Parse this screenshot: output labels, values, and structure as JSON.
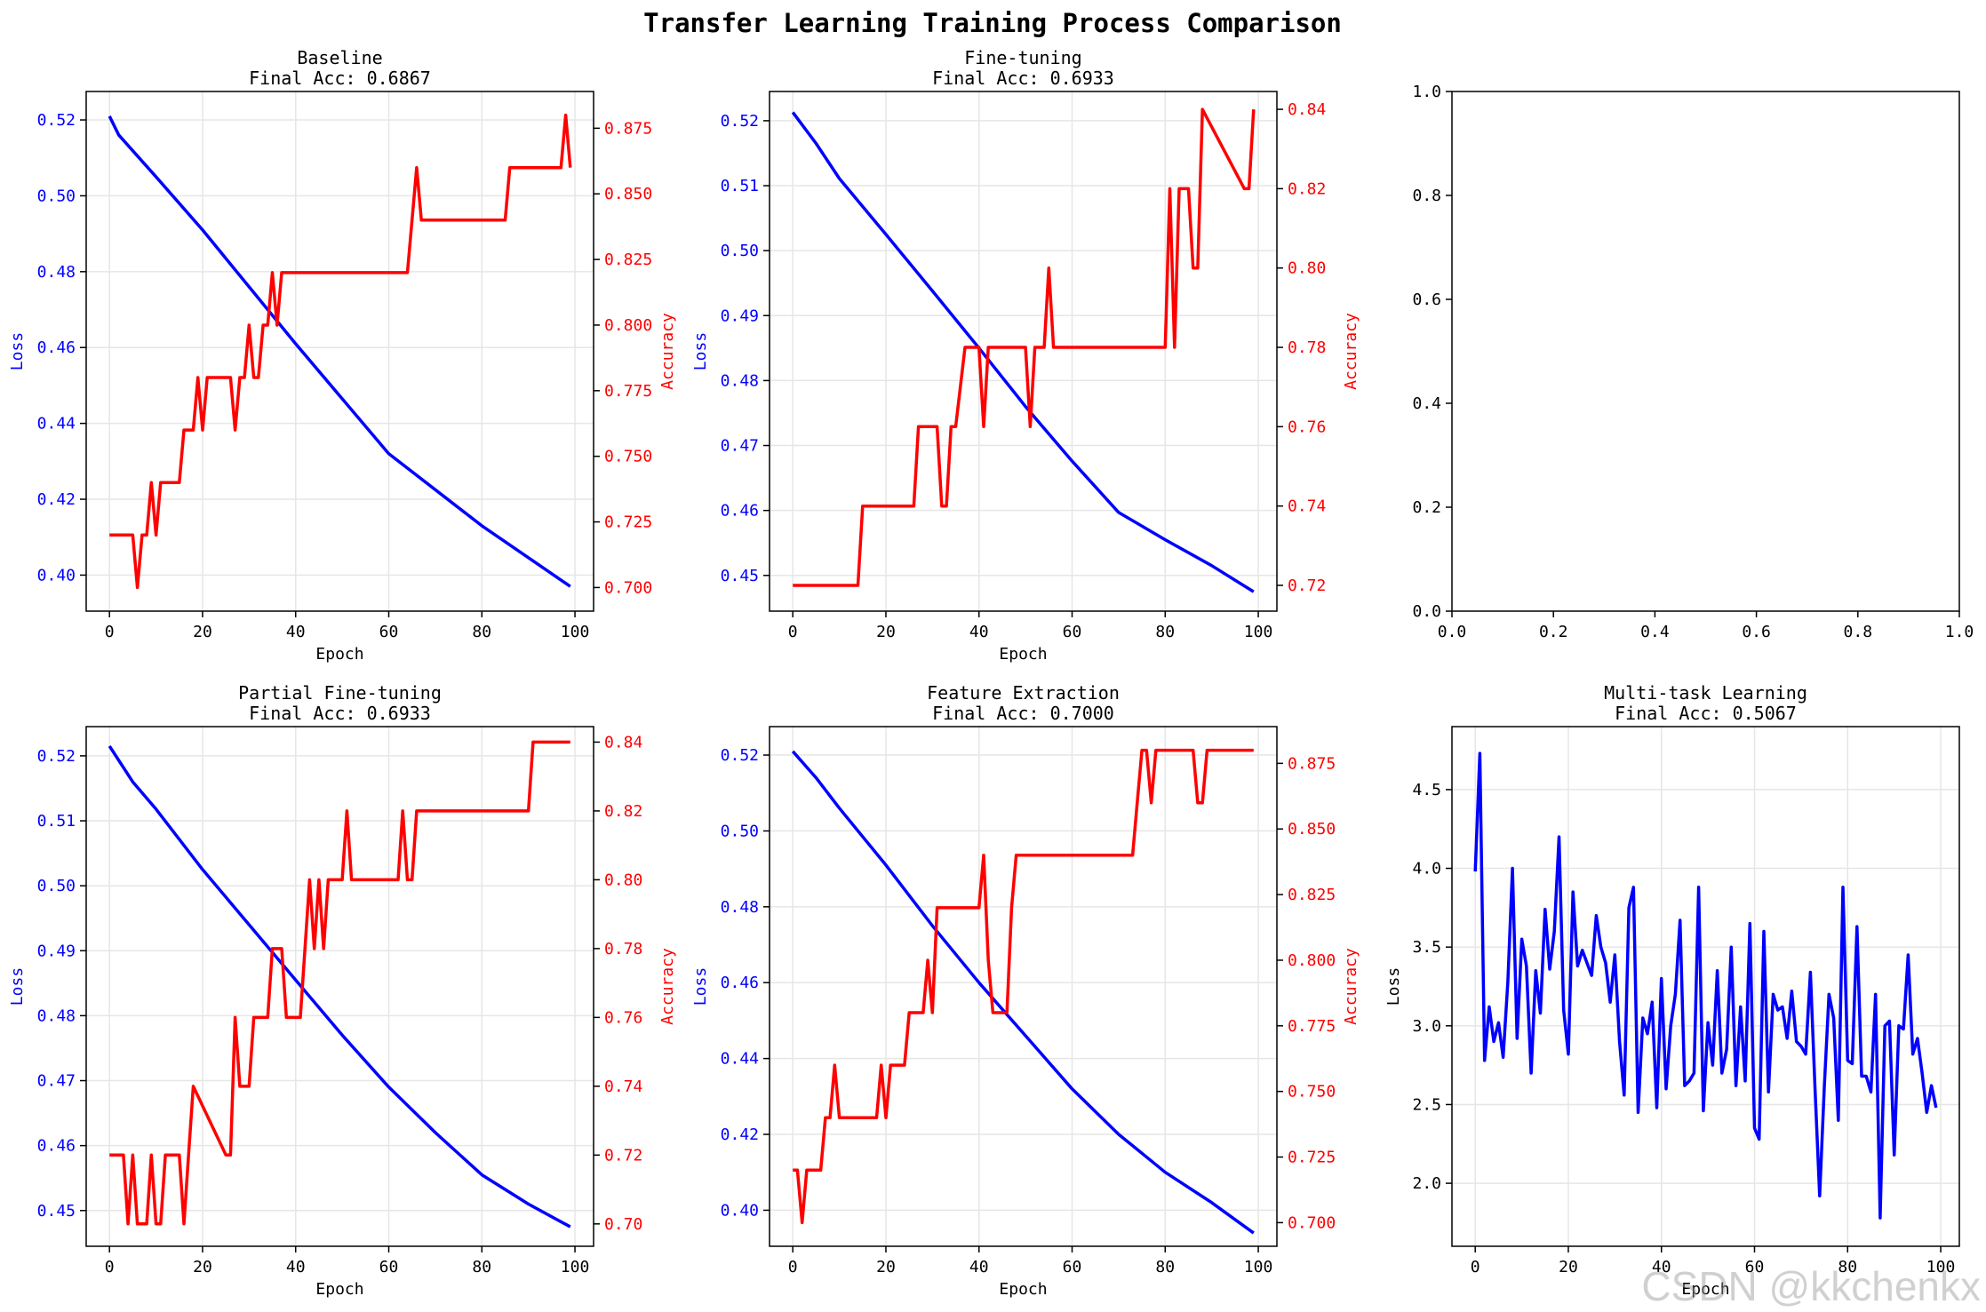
{
  "figure": {
    "title": "Transfer Learning Training Process Comparison",
    "watermark": "CSDN @kkchenkx"
  },
  "colors": {
    "loss": "#0000ff",
    "accuracy": "#ff0000",
    "grid": "#e6e6e6",
    "axis": "#000000"
  },
  "chart_data": [
    {
      "type": "line",
      "title": "Baseline",
      "subtitle": "Final Acc: 0.6867",
      "xlabel": "Epoch",
      "ylabel": "Loss",
      "ylabel_right": "Accuracy",
      "xlim": [
        -5,
        104
      ],
      "xticks": [
        0,
        20,
        40,
        60,
        80,
        100
      ],
      "ylim": [
        0.3905,
        0.5275
      ],
      "yticks": [
        0.4,
        0.42,
        0.44,
        0.46,
        0.48,
        0.5,
        0.52
      ],
      "ytick_decimals": 2,
      "ylim_right": [
        0.691,
        0.889
      ],
      "yticks_right": [
        0.7,
        0.725,
        0.75,
        0.775,
        0.8,
        0.825,
        0.85,
        0.875
      ],
      "ytick_right_decimals": 3,
      "grid": true,
      "series": [
        {
          "axis": "left",
          "color": "#0000ff",
          "x": [
            0,
            2,
            10,
            20,
            30,
            40,
            60,
            80,
            99
          ],
          "values": [
            0.521,
            0.516,
            0.505,
            0.491,
            0.476,
            0.461,
            0.432,
            0.413,
            0.397
          ]
        },
        {
          "axis": "right",
          "color": "#ff0000",
          "x": [
            0,
            5,
            6,
            7,
            8,
            9,
            10,
            11,
            15,
            16,
            18,
            19,
            20,
            21,
            26,
            27,
            28,
            29,
            30,
            31,
            32,
            33,
            34,
            35,
            36,
            37,
            64,
            66,
            67,
            85,
            86,
            97,
            98,
            99
          ],
          "values": [
            0.72,
            0.72,
            0.7,
            0.72,
            0.72,
            0.74,
            0.72,
            0.74,
            0.74,
            0.76,
            0.76,
            0.78,
            0.76,
            0.78,
            0.78,
            0.76,
            0.78,
            0.78,
            0.8,
            0.78,
            0.78,
            0.8,
            0.8,
            0.82,
            0.8,
            0.82,
            0.82,
            0.86,
            0.84,
            0.84,
            0.86,
            0.86,
            0.88,
            0.86
          ]
        }
      ]
    },
    {
      "type": "line",
      "title": "Fine-tuning",
      "subtitle": "Final Acc: 0.6933",
      "xlabel": "Epoch",
      "ylabel": "Loss",
      "ylabel_right": "Accuracy",
      "xlim": [
        -5,
        104
      ],
      "xticks": [
        0,
        20,
        40,
        60,
        80,
        100
      ],
      "ylim": [
        0.4445,
        0.5245
      ],
      "yticks": [
        0.45,
        0.46,
        0.47,
        0.48,
        0.49,
        0.5,
        0.51,
        0.52
      ],
      "ytick_decimals": 2,
      "ylim_right": [
        0.7135,
        0.8445
      ],
      "yticks_right": [
        0.72,
        0.74,
        0.76,
        0.78,
        0.8,
        0.82,
        0.84
      ],
      "ytick_right_decimals": 2,
      "grid": true,
      "series": [
        {
          "axis": "left",
          "color": "#0000ff",
          "x": [
            0,
            5,
            10,
            20,
            30,
            40,
            50,
            60,
            70,
            80,
            90,
            99
          ],
          "values": [
            0.5213,
            0.5165,
            0.5111,
            0.5025,
            0.4938,
            0.485,
            0.476,
            0.4676,
            0.4597,
            0.4555,
            0.4515,
            0.4475
          ]
        },
        {
          "axis": "right",
          "color": "#ff0000",
          "x": [
            0,
            14,
            15,
            26,
            27,
            31,
            32,
            33,
            34,
            35,
            37,
            38,
            40,
            41,
            42,
            50,
            51,
            52,
            54,
            55,
            56,
            80,
            81,
            82,
            83,
            85,
            86,
            87,
            88,
            97,
            98,
            99
          ],
          "values": [
            0.72,
            0.72,
            0.74,
            0.74,
            0.76,
            0.76,
            0.74,
            0.74,
            0.76,
            0.76,
            0.78,
            0.78,
            0.78,
            0.76,
            0.78,
            0.78,
            0.76,
            0.78,
            0.78,
            0.8,
            0.78,
            0.78,
            0.82,
            0.78,
            0.82,
            0.82,
            0.8,
            0.8,
            0.84,
            0.82,
            0.82,
            0.84
          ]
        }
      ]
    },
    {
      "type": "line",
      "title": "",
      "subtitle": "",
      "xlabel": "",
      "ylabel": "",
      "ylabel_right": "",
      "xlim": [
        0,
        1
      ],
      "xticks": [
        0.0,
        0.2,
        0.4,
        0.6,
        0.8,
        1.0
      ],
      "xtick_decimals": 1,
      "ylim": [
        0,
        1
      ],
      "yticks": [
        0.0,
        0.2,
        0.4,
        0.6,
        0.8,
        1.0
      ],
      "ytick_decimals": 1,
      "grid": false,
      "series": []
    },
    {
      "type": "line",
      "title": "Partial Fine-tuning",
      "subtitle": "Final Acc: 0.6933",
      "xlabel": "Epoch",
      "ylabel": "Loss",
      "ylabel_right": "Accuracy",
      "xlim": [
        -5,
        104
      ],
      "xticks": [
        0,
        20,
        40,
        60,
        80,
        100
      ],
      "ylim": [
        0.4445,
        0.5245
      ],
      "yticks": [
        0.45,
        0.46,
        0.47,
        0.48,
        0.49,
        0.5,
        0.51,
        0.52
      ],
      "ytick_decimals": 2,
      "ylim_right": [
        0.6935,
        0.8445
      ],
      "yticks_right": [
        0.7,
        0.72,
        0.74,
        0.76,
        0.78,
        0.8,
        0.82,
        0.84
      ],
      "ytick_right_decimals": 2,
      "grid": true,
      "series": [
        {
          "axis": "left",
          "color": "#0000ff",
          "x": [
            0,
            5,
            10,
            20,
            30,
            40,
            50,
            60,
            70,
            80,
            90,
            99
          ],
          "values": [
            0.5215,
            0.516,
            0.5118,
            0.5025,
            0.494,
            0.4855,
            0.477,
            0.469,
            0.462,
            0.4555,
            0.451,
            0.4475
          ]
        },
        {
          "axis": "right",
          "color": "#ff0000",
          "x": [
            0,
            3,
            4,
            5,
            6,
            8,
            9,
            10,
            11,
            12,
            15,
            16,
            17,
            18,
            25,
            26,
            27,
            28,
            30,
            31,
            34,
            35,
            37,
            38,
            41,
            42,
            43,
            44,
            45,
            46,
            47,
            50,
            51,
            52,
            62,
            63,
            64,
            65,
            66,
            67,
            90,
            91,
            99
          ],
          "values": [
            0.72,
            0.72,
            0.7,
            0.72,
            0.7,
            0.7,
            0.72,
            0.7,
            0.7,
            0.72,
            0.72,
            0.7,
            0.72,
            0.74,
            0.72,
            0.72,
            0.76,
            0.74,
            0.74,
            0.76,
            0.76,
            0.78,
            0.78,
            0.76,
            0.76,
            0.78,
            0.8,
            0.78,
            0.8,
            0.78,
            0.8,
            0.8,
            0.82,
            0.8,
            0.8,
            0.82,
            0.8,
            0.8,
            0.82,
            0.82,
            0.82,
            0.84,
            0.84
          ]
        }
      ]
    },
    {
      "type": "line",
      "title": "Feature Extraction",
      "subtitle": "Final Acc: 0.7000",
      "xlabel": "Epoch",
      "ylabel": "Loss",
      "ylabel_right": "Accuracy",
      "xlim": [
        -5,
        104
      ],
      "xticks": [
        0,
        20,
        40,
        60,
        80,
        100
      ],
      "ylim": [
        0.3905,
        0.5275
      ],
      "yticks": [
        0.4,
        0.42,
        0.44,
        0.46,
        0.48,
        0.5,
        0.52
      ],
      "ytick_decimals": 2,
      "ylim_right": [
        0.691,
        0.889
      ],
      "yticks_right": [
        0.7,
        0.725,
        0.75,
        0.775,
        0.8,
        0.825,
        0.85,
        0.875
      ],
      "ytick_right_decimals": 3,
      "grid": true,
      "series": [
        {
          "axis": "left",
          "color": "#0000ff",
          "x": [
            0,
            5,
            10,
            20,
            30,
            40,
            50,
            60,
            70,
            80,
            90,
            99
          ],
          "values": [
            0.521,
            0.514,
            0.506,
            0.491,
            0.475,
            0.46,
            0.446,
            0.432,
            0.42,
            0.41,
            0.402,
            0.394
          ]
        },
        {
          "axis": "right",
          "color": "#ff0000",
          "x": [
            0,
            1,
            2,
            3,
            6,
            7,
            8,
            9,
            10,
            11,
            18,
            19,
            20,
            21,
            24,
            25,
            28,
            29,
            30,
            31,
            32,
            40,
            41,
            42,
            43,
            46,
            47,
            48,
            73,
            74,
            75,
            76,
            77,
            78,
            86,
            87,
            88,
            89,
            99
          ],
          "values": [
            0.72,
            0.72,
            0.7,
            0.72,
            0.72,
            0.74,
            0.74,
            0.76,
            0.74,
            0.74,
            0.74,
            0.76,
            0.74,
            0.76,
            0.76,
            0.78,
            0.78,
            0.8,
            0.78,
            0.82,
            0.82,
            0.82,
            0.84,
            0.8,
            0.78,
            0.78,
            0.82,
            0.84,
            0.84,
            0.86,
            0.88,
            0.88,
            0.86,
            0.88,
            0.88,
            0.86,
            0.86,
            0.88,
            0.88
          ]
        }
      ]
    },
    {
      "type": "line",
      "title": "Multi-task Learning",
      "subtitle": "Final Acc: 0.5067",
      "xlabel": "Epoch",
      "ylabel": "Loss",
      "ylabel_right": "",
      "xlim": [
        -5,
        104
      ],
      "xticks": [
        0,
        20,
        40,
        60,
        80,
        100
      ],
      "ylim": [
        1.6,
        4.9
      ],
      "yticks": [
        2.0,
        2.5,
        3.0,
        3.5,
        4.0,
        4.5
      ],
      "ytick_decimals": 1,
      "grid": true,
      "series": [
        {
          "axis": "left",
          "color": "#0000ff",
          "x": [
            0,
            1,
            2,
            3,
            4,
            5,
            6,
            7,
            8,
            9,
            10,
            11,
            12,
            13,
            14,
            15,
            16,
            17,
            18,
            19,
            20,
            21,
            22,
            23,
            24,
            25,
            26,
            27,
            28,
            29,
            30,
            31,
            32,
            33,
            34,
            35,
            36,
            37,
            38,
            39,
            40,
            41,
            42,
            43,
            44,
            45,
            46,
            47,
            48,
            49,
            50,
            51,
            52,
            53,
            54,
            55,
            56,
            57,
            58,
            59,
            60,
            61,
            62,
            63,
            64,
            65,
            66,
            67,
            68,
            69,
            70,
            71,
            72,
            73,
            74,
            75,
            76,
            77,
            78,
            79,
            80,
            81,
            82,
            83,
            84,
            85,
            86,
            87,
            88,
            89,
            90,
            91,
            92,
            93,
            94,
            95,
            96,
            97,
            98,
            99
          ],
          "values": [
            3.98,
            4.73,
            2.78,
            3.12,
            2.9,
            3.02,
            2.8,
            3.28,
            4.0,
            2.92,
            3.55,
            3.38,
            2.7,
            3.35,
            3.08,
            3.74,
            3.36,
            3.6,
            4.2,
            3.1,
            2.82,
            3.85,
            3.38,
            3.48,
            3.4,
            3.32,
            3.7,
            3.5,
            3.4,
            3.15,
            3.45,
            2.9,
            2.56,
            3.75,
            3.88,
            2.45,
            3.05,
            2.95,
            3.15,
            2.48,
            3.3,
            2.6,
            3.0,
            3.2,
            3.67,
            2.62,
            2.65,
            2.7,
            3.88,
            2.46,
            3.02,
            2.75,
            3.35,
            2.7,
            2.85,
            3.5,
            2.62,
            3.12,
            2.65,
            3.65,
            2.35,
            2.28,
            3.6,
            2.58,
            3.2,
            3.1,
            3.12,
            2.92,
            3.22,
            2.9,
            2.87,
            2.82,
            3.34,
            2.6,
            1.92,
            2.62,
            3.2,
            3.05,
            2.4,
            3.88,
            2.78,
            2.76,
            3.63,
            2.68,
            2.68,
            2.58,
            3.2,
            1.78,
            3.0,
            3.03,
            2.18,
            3.0,
            2.98,
            3.45,
            2.82,
            2.92,
            2.7,
            2.45,
            2.62,
            2.48
          ]
        }
      ]
    }
  ]
}
